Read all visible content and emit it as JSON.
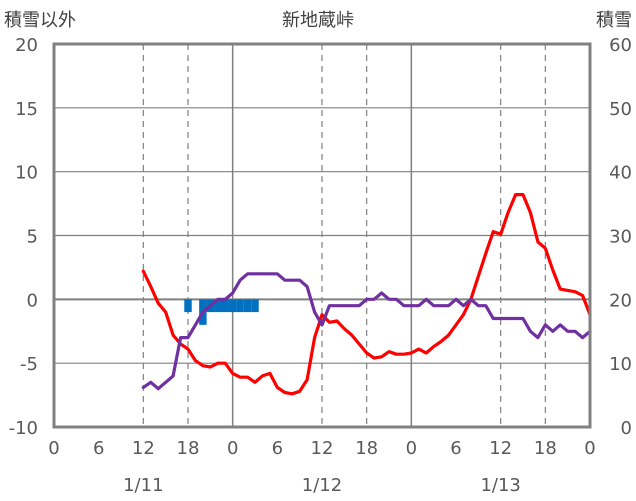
{
  "colors": {
    "temperature": "#ff0000",
    "humidity_line": "#7030a0",
    "snow_bar": "#0070c0",
    "axis": "#808080",
    "text": "#595959"
  },
  "chart_data": {
    "type": "line",
    "title": "新地蔵峠",
    "left_axis_title": "積雪以外",
    "right_axis_title": "積雪",
    "y_left": {
      "min": -10,
      "max": 20,
      "step": 5
    },
    "y_right": {
      "min": 0,
      "max": 60,
      "step": 10
    },
    "x_hours": {
      "min": 0,
      "max": 72
    },
    "x_tick_labels": [
      "0",
      "6",
      "12",
      "18",
      "0",
      "6",
      "12",
      "18",
      "0",
      "6",
      "12",
      "18",
      "0"
    ],
    "date_labels": [
      {
        "text": "1/11",
        "hour": 12
      },
      {
        "text": "1/12",
        "hour": 36
      },
      {
        "text": "1/13",
        "hour": 60
      }
    ],
    "dashed_gridlines_hours": [
      12,
      18,
      36,
      42,
      60,
      66
    ],
    "solid_gridlines_hours": [
      24,
      48
    ],
    "series": [
      {
        "axis": "left",
        "color": "#ff0000",
        "points": [
          [
            12,
            2.2
          ],
          [
            13,
            1.0
          ],
          [
            14,
            -0.3
          ],
          [
            15,
            -1.0
          ],
          [
            16,
            -2.8
          ],
          [
            17,
            -3.5
          ],
          [
            18,
            -3.9
          ],
          [
            19,
            -4.8
          ],
          [
            20,
            -5.2
          ],
          [
            21,
            -5.3
          ],
          [
            22,
            -5.0
          ],
          [
            23,
            -5.0
          ],
          [
            24,
            -5.8
          ],
          [
            25,
            -6.1
          ],
          [
            26,
            -6.1
          ],
          [
            27,
            -6.5
          ],
          [
            28,
            -6.0
          ],
          [
            29,
            -5.8
          ],
          [
            30,
            -6.9
          ],
          [
            31,
            -7.3
          ],
          [
            32,
            -7.4
          ],
          [
            33,
            -7.2
          ],
          [
            34,
            -6.3
          ],
          [
            35,
            -3.0
          ],
          [
            36,
            -1.2
          ],
          [
            37,
            -1.8
          ],
          [
            38,
            -1.7
          ],
          [
            39,
            -2.3
          ],
          [
            40,
            -2.8
          ],
          [
            41,
            -3.5
          ],
          [
            42,
            -4.2
          ],
          [
            43,
            -4.6
          ],
          [
            44,
            -4.5
          ],
          [
            45,
            -4.1
          ],
          [
            46,
            -4.3
          ],
          [
            47,
            -4.3
          ],
          [
            48,
            -4.2
          ],
          [
            49,
            -3.9
          ],
          [
            50,
            -4.2
          ],
          [
            51,
            -3.7
          ],
          [
            52,
            -3.3
          ],
          [
            53,
            -2.8
          ],
          [
            54,
            -2.0
          ],
          [
            55,
            -1.2
          ],
          [
            56,
            0.0
          ],
          [
            57,
            1.8
          ],
          [
            58,
            3.6
          ],
          [
            59,
            5.3
          ],
          [
            60,
            5.1
          ],
          [
            61,
            6.8
          ],
          [
            62,
            8.2
          ],
          [
            63,
            8.2
          ],
          [
            64,
            6.8
          ],
          [
            65,
            4.5
          ],
          [
            66,
            4.0
          ],
          [
            67,
            2.3
          ],
          [
            68,
            0.8
          ],
          [
            69,
            0.7
          ],
          [
            70,
            0.6
          ],
          [
            71,
            0.3
          ],
          [
            72,
            -1.2
          ]
        ]
      },
      {
        "axis": "left",
        "color": "#7030a0",
        "points": [
          [
            12,
            -6.9
          ],
          [
            13,
            -6.5
          ],
          [
            14,
            -7.0
          ],
          [
            15,
            -6.5
          ],
          [
            16,
            -6.0
          ],
          [
            17,
            -3.0
          ],
          [
            18,
            -3.0
          ],
          [
            19,
            -2.0
          ],
          [
            20,
            -1.0
          ],
          [
            21,
            -0.5
          ],
          [
            22,
            0.0
          ],
          [
            23,
            0.0
          ],
          [
            24,
            0.5
          ],
          [
            25,
            1.5
          ],
          [
            26,
            2.0
          ],
          [
            27,
            2.0
          ],
          [
            28,
            2.0
          ],
          [
            29,
            2.0
          ],
          [
            30,
            2.0
          ],
          [
            31,
            1.5
          ],
          [
            32,
            1.5
          ],
          [
            33,
            1.5
          ],
          [
            34,
            1.0
          ],
          [
            35,
            -1.0
          ],
          [
            36,
            -2.0
          ],
          [
            37,
            -0.5
          ],
          [
            38,
            -0.5
          ],
          [
            39,
            -0.5
          ],
          [
            40,
            -0.5
          ],
          [
            41,
            -0.5
          ],
          [
            42,
            0.0
          ],
          [
            43,
            0.0
          ],
          [
            44,
            0.5
          ],
          [
            45,
            0.0
          ],
          [
            46,
            0.0
          ],
          [
            47,
            -0.5
          ],
          [
            48,
            -0.5
          ],
          [
            49,
            -0.5
          ],
          [
            50,
            0.0
          ],
          [
            51,
            -0.5
          ],
          [
            52,
            -0.5
          ],
          [
            53,
            -0.5
          ],
          [
            54,
            0.0
          ],
          [
            55,
            -0.5
          ],
          [
            56,
            0.0
          ],
          [
            57,
            -0.5
          ],
          [
            58,
            -0.5
          ],
          [
            59,
            -1.5
          ],
          [
            60,
            -1.5
          ],
          [
            61,
            -1.5
          ],
          [
            62,
            -1.5
          ],
          [
            63,
            -1.5
          ],
          [
            64,
            -2.5
          ],
          [
            65,
            -3.0
          ],
          [
            66,
            -2.0
          ],
          [
            67,
            -2.5
          ],
          [
            68,
            -2.0
          ],
          [
            69,
            -2.5
          ],
          [
            70,
            -2.5
          ],
          [
            71,
            -3.0
          ],
          [
            72,
            -2.5
          ]
        ]
      }
    ],
    "bars": {
      "axis": "left",
      "color": "#0070c0",
      "baseline": 0,
      "items": [
        {
          "hour": 18,
          "value": -1.0
        },
        {
          "hour": 20,
          "value": -2.0
        },
        {
          "hour": 21,
          "value": -1.0
        },
        {
          "hour": 22,
          "value": -1.0
        },
        {
          "hour": 23,
          "value": -1.0
        },
        {
          "hour": 24,
          "value": -1.0
        },
        {
          "hour": 25,
          "value": -1.0
        },
        {
          "hour": 26,
          "value": -1.0
        },
        {
          "hour": 27,
          "value": -1.0
        }
      ]
    }
  }
}
